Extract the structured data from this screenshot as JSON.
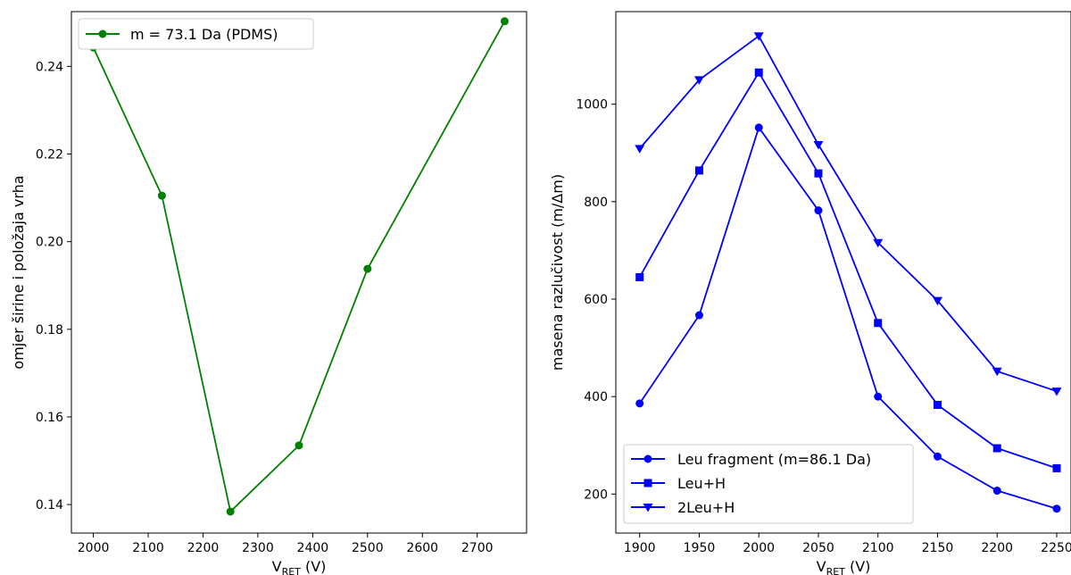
{
  "chart_data": [
    {
      "type": "line",
      "xlabel_main": "V",
      "xlabel_sub": "RET",
      "xlabel_unit": " (V)",
      "ylabel": "omjer širine i položaja vrha",
      "xlim": [
        1960,
        2790
      ],
      "ylim": [
        0.1335,
        0.2525
      ],
      "xticks": [
        2000,
        2100,
        2200,
        2300,
        2400,
        2500,
        2600,
        2700
      ],
      "yticks": [
        0.14,
        0.16,
        0.18,
        0.2,
        0.22,
        0.24
      ],
      "ytick_labels": [
        "0.14",
        "0.16",
        "0.18",
        "0.20",
        "0.22",
        "0.24"
      ],
      "legend_position": "upper-left",
      "series": [
        {
          "name": "m = 73.1 Da (PDMS)",
          "color": "#008000",
          "marker": "circle",
          "x": [
            2000,
            2125,
            2250,
            2375,
            2500,
            2750
          ],
          "y": [
            0.2443,
            0.2105,
            0.1384,
            0.1535,
            0.1938,
            0.2503
          ]
        }
      ]
    },
    {
      "type": "line",
      "xlabel_main": "V",
      "xlabel_sub": "RET",
      "xlabel_unit": " (V)",
      "ylabel": "masena razlučivost (m/Δm)",
      "xlim": [
        1880,
        2262
      ],
      "ylim": [
        120,
        1190
      ],
      "xticks": [
        1900,
        1950,
        2000,
        2050,
        2100,
        2150,
        2200,
        2250
      ],
      "yticks": [
        200,
        400,
        600,
        800,
        1000
      ],
      "ytick_labels": [
        "200",
        "400",
        "600",
        "800",
        "1000"
      ],
      "legend_position": "lower-left",
      "series": [
        {
          "name": "Leu fragment (m=86.1 Da)",
          "color": "#0000ff",
          "marker": "circle",
          "x": [
            1900,
            1950,
            2000,
            2050,
            2100,
            2150,
            2200,
            2250
          ],
          "y": [
            386,
            567,
            952,
            782,
            400,
            277,
            207,
            170
          ]
        },
        {
          "name": "Leu+H",
          "color": "#0000ff",
          "marker": "square",
          "x": [
            1900,
            1950,
            2000,
            2050,
            2100,
            2150,
            2200,
            2250
          ],
          "y": [
            645,
            864,
            1065,
            858,
            551,
            383,
            294,
            253
          ]
        },
        {
          "name": "2Leu+H",
          "color": "#0000ff",
          "marker": "triangle-down",
          "x": [
            1900,
            1950,
            2000,
            2050,
            2100,
            2150,
            2200,
            2250
          ],
          "y": [
            909,
            1050,
            1140,
            917,
            716,
            597,
            452,
            411
          ]
        }
      ]
    }
  ]
}
